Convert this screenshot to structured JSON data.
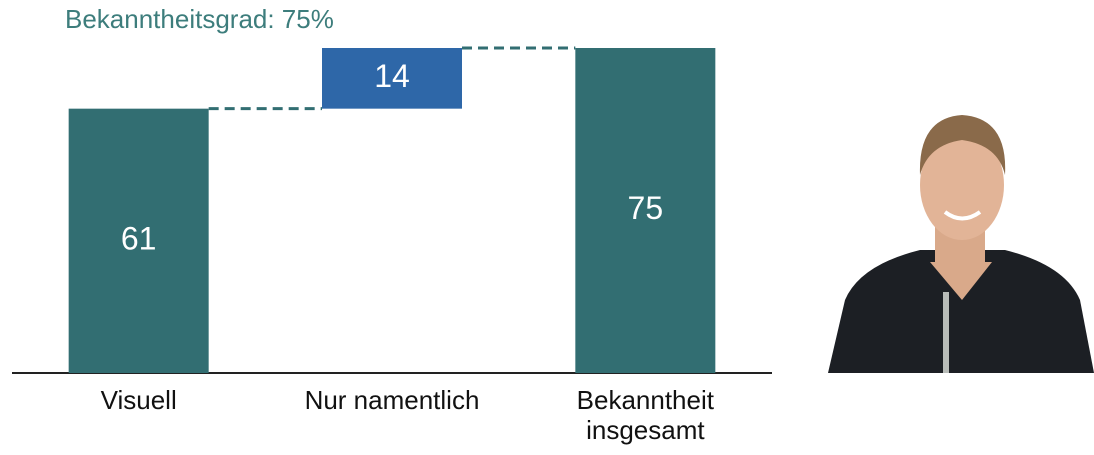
{
  "chart_data": {
    "type": "waterfall",
    "title": "Bekanntheitsgrad: 75%",
    "categories": [
      "Visuell",
      "Nur namentlich",
      "Bekanntheit insgesamt"
    ],
    "values": [
      61,
      14,
      75
    ],
    "is_total": [
      false,
      false,
      true
    ],
    "colors": [
      "#326e72",
      "#2e67a8",
      "#326e72"
    ],
    "connector_color": "#326e72",
    "ylim": [
      0,
      75
    ]
  }
}
